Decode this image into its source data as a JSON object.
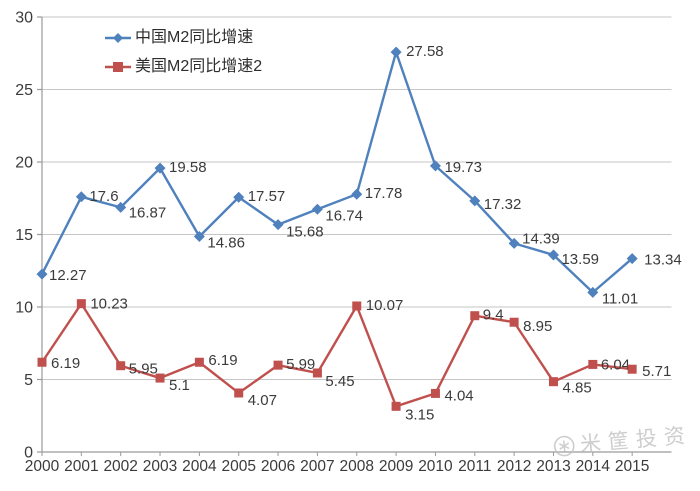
{
  "chart_data": {
    "type": "line",
    "x": [
      "2000",
      "2001",
      "2002",
      "2003",
      "2004",
      "2005",
      "2006",
      "2007",
      "2008",
      "2009",
      "2010",
      "2011",
      "2012",
      "2013",
      "2014",
      "2015"
    ],
    "series": [
      {
        "name": "中国M2同比增速",
        "color": "#4F81BD",
        "marker": "diamond",
        "values": [
          12.27,
          17.6,
          16.87,
          19.58,
          14.86,
          17.57,
          15.68,
          16.74,
          17.78,
          27.58,
          19.73,
          17.32,
          14.39,
          13.59,
          11.01,
          13.34
        ],
        "label_offsets": [
          [
            7,
            6
          ],
          [
            8,
            4
          ],
          [
            8,
            10
          ],
          [
            9,
            4
          ],
          [
            8,
            11
          ],
          [
            9,
            4
          ],
          [
            8,
            12
          ],
          [
            8,
            11
          ],
          [
            8,
            4
          ],
          [
            10,
            4
          ],
          [
            9,
            6
          ],
          [
            9,
            8
          ],
          [
            8,
            0
          ],
          [
            8,
            9
          ],
          [
            9,
            11
          ],
          [
            12,
            6
          ]
        ]
      },
      {
        "name": "美国M2同比增速2",
        "color": "#C0504D",
        "marker": "square",
        "values": [
          6.19,
          10.23,
          5.95,
          5.1,
          6.19,
          4.07,
          5.99,
          5.45,
          10.07,
          3.15,
          4.04,
          9.4,
          8.95,
          4.85,
          6.04,
          5.71
        ],
        "label_offsets": [
          [
            9,
            6
          ],
          [
            9,
            5
          ],
          [
            8,
            8
          ],
          [
            9,
            12
          ],
          [
            9,
            3
          ],
          [
            9,
            12
          ],
          [
            8,
            4
          ],
          [
            8,
            13
          ],
          [
            9,
            4
          ],
          [
            9,
            13
          ],
          [
            9,
            7
          ],
          [
            8,
            4
          ],
          [
            9,
            9
          ],
          [
            9,
            11
          ],
          [
            8,
            5
          ],
          [
            10,
            7
          ]
        ]
      }
    ],
    "title": "",
    "xlabel": "",
    "ylabel": "",
    "ylim": [
      0,
      30
    ],
    "ytick_step": 5,
    "y_ticks": [
      "0",
      "5",
      "10",
      "15",
      "20",
      "25",
      "30"
    ],
    "grid": "horizontal",
    "legend_position": "top-left-inset",
    "data_labels": true
  },
  "watermark": {
    "text": "米筐投资",
    "icon": "asterisk-circle-icon",
    "color": "#bdbdbd"
  },
  "colors": {
    "background": "#ffffff",
    "gridline": "#c6c6c6",
    "axis": "#9a9a9a",
    "tick_label": "#3b3b3b",
    "data_label": "#3b3b3b",
    "series_china": "#4F81BD",
    "series_us": "#C0504D"
  }
}
